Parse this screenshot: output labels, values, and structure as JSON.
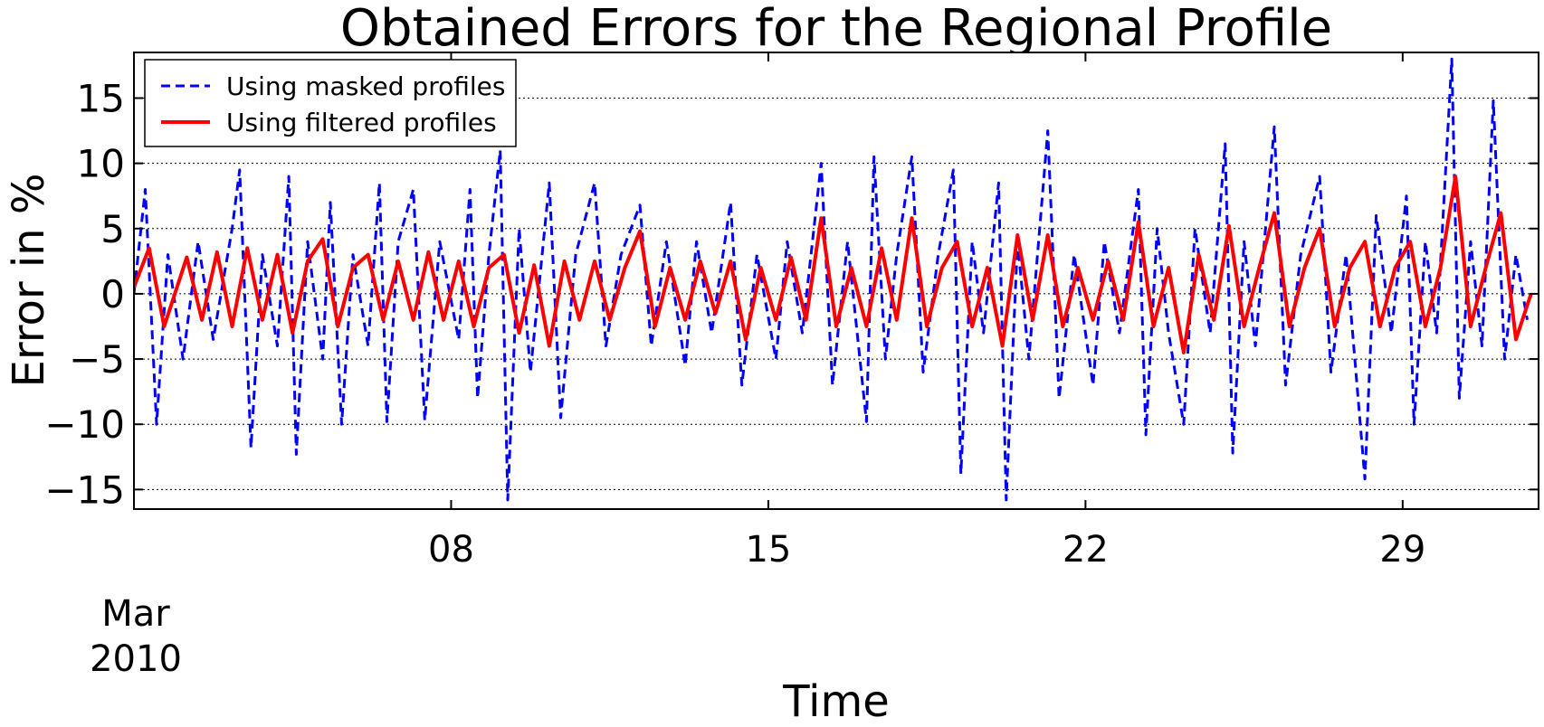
{
  "chart_data": {
    "type": "line",
    "title": "Obtained Errors for the Regional Profile",
    "xlabel": "Time",
    "ylabel": "Error in %",
    "x_range": [
      "2010-03-01",
      "2010-03-31"
    ],
    "ylim": [
      -16.5,
      18.5
    ],
    "y_ticks": [
      15,
      10,
      5,
      0,
      -5,
      -10,
      -15
    ],
    "y_tick_labels": [
      "15",
      "10",
      "5",
      "0",
      "−5",
      "−10",
      "−15"
    ],
    "x_ticks": [
      {
        "date": "2010-03-08",
        "label": "08"
      },
      {
        "date": "2010-03-15",
        "label": "15"
      },
      {
        "date": "2010-03-22",
        "label": "22"
      },
      {
        "date": "2010-03-29",
        "label": "29"
      }
    ],
    "x_offset_label": [
      "Mar",
      "2010"
    ],
    "grid": "horizontal-dotted",
    "legend_position": "top-left",
    "series": [
      {
        "name": "Using masked profiles",
        "color": "#0000ff",
        "style": "dashed",
        "points": [
          [
            "2010-03-01T00:00",
            0.0
          ],
          [
            "2010-03-01T06:00",
            8.0
          ],
          [
            "2010-03-01T12:00",
            -10.0
          ],
          [
            "2010-03-01T18:00",
            3.0
          ],
          [
            "2010-03-02T02:00",
            -5.0
          ],
          [
            "2010-03-02T10:00",
            4.0
          ],
          [
            "2010-03-02T18:00",
            -3.5
          ],
          [
            "2010-03-03T04:00",
            5.0
          ],
          [
            "2010-03-03T08:00",
            9.5
          ],
          [
            "2010-03-03T14:00",
            -11.8
          ],
          [
            "2010-03-03T20:00",
            3.0
          ],
          [
            "2010-03-04T04:00",
            -4.0
          ],
          [
            "2010-03-04T10:00",
            9.0
          ],
          [
            "2010-03-04T14:00",
            -12.3
          ],
          [
            "2010-03-04T20:00",
            4.0
          ],
          [
            "2010-03-05T04:00",
            -5.0
          ],
          [
            "2010-03-05T08:00",
            7.0
          ],
          [
            "2010-03-05T14:00",
            -10.0
          ],
          [
            "2010-03-05T20:00",
            3.0
          ],
          [
            "2010-03-06T04:00",
            -4.0
          ],
          [
            "2010-03-06T10:00",
            8.5
          ],
          [
            "2010-03-06T14:00",
            -9.8
          ],
          [
            "2010-03-06T20:00",
            4.0
          ],
          [
            "2010-03-07T04:00",
            8.0
          ],
          [
            "2010-03-07T10:00",
            -9.7
          ],
          [
            "2010-03-07T18:00",
            4.0
          ],
          [
            "2010-03-08T04:00",
            -3.5
          ],
          [
            "2010-03-08T10:00",
            8.0
          ],
          [
            "2010-03-08T14:00",
            -8.0
          ],
          [
            "2010-03-08T20:00",
            3.0
          ],
          [
            "2010-03-09T02:00",
            11.0
          ],
          [
            "2010-03-09T06:00",
            -15.8
          ],
          [
            "2010-03-09T12:00",
            5.0
          ],
          [
            "2010-03-09T18:00",
            -6.0
          ],
          [
            "2010-03-10T04:00",
            8.5
          ],
          [
            "2010-03-10T10:00",
            -9.5
          ],
          [
            "2010-03-10T18:00",
            3.0
          ],
          [
            "2010-03-11T04:00",
            8.5
          ],
          [
            "2010-03-11T10:00",
            -4.0
          ],
          [
            "2010-03-11T18:00",
            3.0
          ],
          [
            "2010-03-12T04:00",
            6.8
          ],
          [
            "2010-03-12T10:00",
            -4.0
          ],
          [
            "2010-03-12T18:00",
            4.0
          ],
          [
            "2010-03-13T04:00",
            -5.5
          ],
          [
            "2010-03-13T10:00",
            4.0
          ],
          [
            "2010-03-13T18:00",
            -3.0
          ],
          [
            "2010-03-14T04:00",
            7.0
          ],
          [
            "2010-03-14T10:00",
            -7.0
          ],
          [
            "2010-03-14T18:00",
            3.0
          ],
          [
            "2010-03-15T04:00",
            -5.0
          ],
          [
            "2010-03-15T10:00",
            4.0
          ],
          [
            "2010-03-15T18:00",
            -3.0
          ],
          [
            "2010-03-16T04:00",
            10.0
          ],
          [
            "2010-03-16T10:00",
            -7.0
          ],
          [
            "2010-03-16T18:00",
            4.0
          ],
          [
            "2010-03-17T04:00",
            -9.8
          ],
          [
            "2010-03-17T08:00",
            10.5
          ],
          [
            "2010-03-17T14:00",
            -5.0
          ],
          [
            "2010-03-17T20:00",
            3.0
          ],
          [
            "2010-03-18T04:00",
            10.5
          ],
          [
            "2010-03-18T10:00",
            -6.0
          ],
          [
            "2010-03-18T18:00",
            3.0
          ],
          [
            "2010-03-19T02:00",
            9.5
          ],
          [
            "2010-03-19T06:00",
            -13.8
          ],
          [
            "2010-03-19T12:00",
            4.0
          ],
          [
            "2010-03-19T18:00",
            -3.0
          ],
          [
            "2010-03-20T02:00",
            8.5
          ],
          [
            "2010-03-20T06:00",
            -15.8
          ],
          [
            "2010-03-20T12:00",
            4.0
          ],
          [
            "2010-03-20T18:00",
            -5.0
          ],
          [
            "2010-03-21T04:00",
            12.5
          ],
          [
            "2010-03-21T10:00",
            -8.0
          ],
          [
            "2010-03-21T18:00",
            3.0
          ],
          [
            "2010-03-22T04:00",
            -7.0
          ],
          [
            "2010-03-22T10:00",
            4.0
          ],
          [
            "2010-03-22T18:00",
            -3.0
          ],
          [
            "2010-03-23T04:00",
            8.0
          ],
          [
            "2010-03-23T08:00",
            -10.8
          ],
          [
            "2010-03-23T14:00",
            5.0
          ],
          [
            "2010-03-23T20:00",
            -3.0
          ],
          [
            "2010-03-24T04:00",
            -10.0
          ],
          [
            "2010-03-24T10:00",
            5.0
          ],
          [
            "2010-03-24T18:00",
            -3.0
          ],
          [
            "2010-03-25T02:00",
            11.5
          ],
          [
            "2010-03-25T06:00",
            -12.2
          ],
          [
            "2010-03-25T12:00",
            4.0
          ],
          [
            "2010-03-25T18:00",
            -4.0
          ],
          [
            "2010-03-26T04:00",
            12.8
          ],
          [
            "2010-03-26T10:00",
            -7.0
          ],
          [
            "2010-03-26T18:00",
            3.0
          ],
          [
            "2010-03-27T04:00",
            9.0
          ],
          [
            "2010-03-27T10:00",
            -6.0
          ],
          [
            "2010-03-27T18:00",
            3.0
          ],
          [
            "2010-03-28T04:00",
            -14.2
          ],
          [
            "2010-03-28T10:00",
            6.0
          ],
          [
            "2010-03-28T18:00",
            -3.0
          ],
          [
            "2010-03-29T02:00",
            7.5
          ],
          [
            "2010-03-29T06:00",
            -10.0
          ],
          [
            "2010-03-29T12:00",
            4.0
          ],
          [
            "2010-03-29T18:00",
            -3.0
          ],
          [
            "2010-03-30T02:00",
            18.0
          ],
          [
            "2010-03-30T06:00",
            -8.0
          ],
          [
            "2010-03-30T12:00",
            4.0
          ],
          [
            "2010-03-30T18:00",
            -4.0
          ],
          [
            "2010-03-31T00:00",
            14.8
          ],
          [
            "2010-03-31T06:00",
            -5.0
          ],
          [
            "2010-03-31T12:00",
            3.0
          ],
          [
            "2010-03-31T18:00",
            -2.0
          ]
        ]
      },
      {
        "name": "Using filtered profiles",
        "color": "#ff0000",
        "style": "solid",
        "points": [
          [
            "2010-03-01T00:00",
            0.5
          ],
          [
            "2010-03-01T08:00",
            3.5
          ],
          [
            "2010-03-01T16:00",
            -2.5
          ],
          [
            "2010-03-02T04:00",
            2.8
          ],
          [
            "2010-03-02T12:00",
            -2.0
          ],
          [
            "2010-03-02T20:00",
            3.2
          ],
          [
            "2010-03-03T04:00",
            -2.5
          ],
          [
            "2010-03-03T12:00",
            3.5
          ],
          [
            "2010-03-03T20:00",
            -2.0
          ],
          [
            "2010-03-04T04:00",
            3.0
          ],
          [
            "2010-03-04T12:00",
            -3.0
          ],
          [
            "2010-03-04T20:00",
            2.5
          ],
          [
            "2010-03-05T04:00",
            4.2
          ],
          [
            "2010-03-05T12:00",
            -2.5
          ],
          [
            "2010-03-05T20:00",
            2.0
          ],
          [
            "2010-03-06T04:00",
            3.0
          ],
          [
            "2010-03-06T12:00",
            -2.0
          ],
          [
            "2010-03-06T20:00",
            2.5
          ],
          [
            "2010-03-07T04:00",
            -2.0
          ],
          [
            "2010-03-07T12:00",
            3.2
          ],
          [
            "2010-03-07T20:00",
            -2.0
          ],
          [
            "2010-03-08T04:00",
            2.5
          ],
          [
            "2010-03-08T12:00",
            -2.5
          ],
          [
            "2010-03-08T20:00",
            2.0
          ],
          [
            "2010-03-09T04:00",
            3.0
          ],
          [
            "2010-03-09T12:00",
            -3.0
          ],
          [
            "2010-03-09T20:00",
            2.2
          ],
          [
            "2010-03-10T04:00",
            -4.0
          ],
          [
            "2010-03-10T12:00",
            2.5
          ],
          [
            "2010-03-10T20:00",
            -2.0
          ],
          [
            "2010-03-11T04:00",
            2.5
          ],
          [
            "2010-03-11T12:00",
            -2.0
          ],
          [
            "2010-03-11T20:00",
            2.0
          ],
          [
            "2010-03-12T04:00",
            4.8
          ],
          [
            "2010-03-12T12:00",
            -2.5
          ],
          [
            "2010-03-12T20:00",
            2.0
          ],
          [
            "2010-03-13T04:00",
            -2.0
          ],
          [
            "2010-03-13T12:00",
            2.5
          ],
          [
            "2010-03-13T20:00",
            -1.5
          ],
          [
            "2010-03-14T04:00",
            2.5
          ],
          [
            "2010-03-14T12:00",
            -3.5
          ],
          [
            "2010-03-14T20:00",
            2.0
          ],
          [
            "2010-03-15T04:00",
            -2.0
          ],
          [
            "2010-03-15T12:00",
            2.8
          ],
          [
            "2010-03-15T20:00",
            -2.0
          ],
          [
            "2010-03-16T04:00",
            5.8
          ],
          [
            "2010-03-16T12:00",
            -2.5
          ],
          [
            "2010-03-16T20:00",
            2.0
          ],
          [
            "2010-03-17T04:00",
            -2.5
          ],
          [
            "2010-03-17T12:00",
            3.5
          ],
          [
            "2010-03-17T20:00",
            -2.0
          ],
          [
            "2010-03-18T04:00",
            5.8
          ],
          [
            "2010-03-18T12:00",
            -2.5
          ],
          [
            "2010-03-18T20:00",
            2.0
          ],
          [
            "2010-03-19T04:00",
            4.0
          ],
          [
            "2010-03-19T12:00",
            -2.5
          ],
          [
            "2010-03-19T20:00",
            2.0
          ],
          [
            "2010-03-20T04:00",
            -4.0
          ],
          [
            "2010-03-20T12:00",
            4.5
          ],
          [
            "2010-03-20T20:00",
            -2.0
          ],
          [
            "2010-03-21T04:00",
            4.5
          ],
          [
            "2010-03-21T12:00",
            -2.5
          ],
          [
            "2010-03-21T20:00",
            2.0
          ],
          [
            "2010-03-22T04:00",
            -2.0
          ],
          [
            "2010-03-22T12:00",
            2.5
          ],
          [
            "2010-03-22T20:00",
            -2.0
          ],
          [
            "2010-03-23T04:00",
            5.5
          ],
          [
            "2010-03-23T12:00",
            -2.5
          ],
          [
            "2010-03-23T20:00",
            2.0
          ],
          [
            "2010-03-24T04:00",
            -4.5
          ],
          [
            "2010-03-24T12:00",
            3.0
          ],
          [
            "2010-03-24T20:00",
            -2.0
          ],
          [
            "2010-03-25T04:00",
            5.2
          ],
          [
            "2010-03-25T12:00",
            -2.5
          ],
          [
            "2010-03-25T20:00",
            2.0
          ],
          [
            "2010-03-26T04:00",
            6.2
          ],
          [
            "2010-03-26T12:00",
            -2.5
          ],
          [
            "2010-03-26T20:00",
            2.0
          ],
          [
            "2010-03-27T04:00",
            5.0
          ],
          [
            "2010-03-27T12:00",
            -2.5
          ],
          [
            "2010-03-27T20:00",
            2.0
          ],
          [
            "2010-03-28T04:00",
            4.0
          ],
          [
            "2010-03-28T12:00",
            -2.5
          ],
          [
            "2010-03-28T20:00",
            2.0
          ],
          [
            "2010-03-29T04:00",
            4.0
          ],
          [
            "2010-03-29T12:00",
            -2.5
          ],
          [
            "2010-03-29T20:00",
            2.0
          ],
          [
            "2010-03-30T04:00",
            9.0
          ],
          [
            "2010-03-30T12:00",
            -2.5
          ],
          [
            "2010-03-30T20:00",
            2.0
          ],
          [
            "2010-03-31T04:00",
            6.2
          ],
          [
            "2010-03-31T12:00",
            -3.5
          ],
          [
            "2010-03-31T20:00",
            0.0
          ]
        ]
      }
    ]
  }
}
